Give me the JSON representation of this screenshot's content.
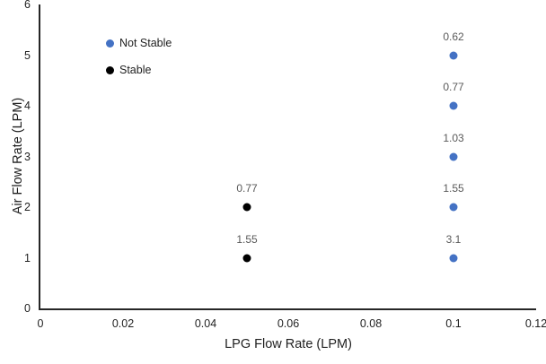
{
  "chart_data": {
    "type": "scatter",
    "title": "",
    "xlabel": "LPG Flow Rate (LPM)",
    "ylabel": "Air Flow Rate (LPM)",
    "xlim": [
      0,
      0.12
    ],
    "ylim": [
      0,
      6
    ],
    "x_ticks": [
      "0",
      "0.02",
      "0.04",
      "0.06",
      "0.08",
      "0.1",
      "0.12"
    ],
    "y_ticks": [
      "0",
      "1",
      "2",
      "3",
      "4",
      "5",
      "6"
    ],
    "grid": false,
    "legend_position": "inside-top-left",
    "data_label_color": "#595959",
    "axis_color": "#262626",
    "series": [
      {
        "name": "Not Stable",
        "color": "#4472C4",
        "points": [
          {
            "x": 0.1,
            "y": 5,
            "label": "0.62"
          },
          {
            "x": 0.1,
            "y": 4,
            "label": "0.77"
          },
          {
            "x": 0.1,
            "y": 3,
            "label": "1.03"
          },
          {
            "x": 0.1,
            "y": 2,
            "label": "1.55"
          },
          {
            "x": 0.1,
            "y": 1,
            "label": "3.1"
          }
        ]
      },
      {
        "name": "Stable",
        "color": "#000000",
        "points": [
          {
            "x": 0.05,
            "y": 2,
            "label": "0.77"
          },
          {
            "x": 0.05,
            "y": 1,
            "label": "1.55"
          }
        ]
      }
    ]
  }
}
